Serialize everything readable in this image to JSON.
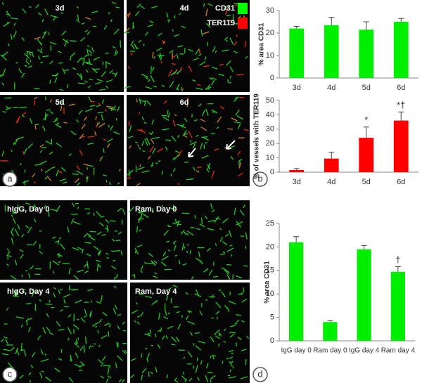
{
  "panels": {
    "a": {
      "label": "a",
      "images": [
        "3d",
        "4d",
        "5d",
        "6d"
      ],
      "legend": [
        {
          "name": "CD31",
          "color": "#00ff00"
        },
        {
          "name": "TER119",
          "color": "#ff0000"
        }
      ]
    },
    "b": {
      "label": "b"
    },
    "c": {
      "label": "c",
      "images": [
        "hIgG, Day 0",
        "Ram, Day 0",
        "hIgG, Day 4",
        "Ram, Day 4"
      ]
    },
    "d": {
      "label": "d"
    }
  },
  "chart_data": [
    {
      "type": "bar",
      "ylabel": "% area CD31",
      "categories": [
        "3d",
        "4d",
        "5d",
        "6d"
      ],
      "values": [
        22,
        23.5,
        21.5,
        25
      ],
      "errors": [
        1,
        3.5,
        3.5,
        1.5
      ],
      "color": "#00ee00",
      "ylim": [
        0,
        30
      ],
      "yticks": [
        0,
        10,
        20,
        30
      ]
    },
    {
      "type": "bar",
      "ylabel": "% of vessels with TER119",
      "categories": [
        "3d",
        "4d",
        "5d",
        "6d"
      ],
      "values": [
        1.5,
        9.5,
        24,
        36
      ],
      "errors": [
        1,
        4.5,
        7.5,
        6
      ],
      "color": "#ff0000",
      "annotations": [
        null,
        null,
        "*",
        "*†"
      ],
      "ylim": [
        0,
        50
      ],
      "yticks": [
        0,
        10,
        20,
        30,
        40,
        50
      ]
    },
    {
      "type": "bar",
      "ylabel": "% area CD31",
      "categories": [
        "IgG day 0",
        "Ram day 0",
        "IgG day 4",
        "Ram day 4"
      ],
      "values": [
        21,
        4,
        19.5,
        14.7
      ],
      "errors": [
        1.2,
        0.3,
        0.8,
        1.1
      ],
      "color": "#00ee00",
      "annotations": [
        null,
        null,
        null,
        "†"
      ],
      "ylim": [
        0,
        25
      ],
      "yticks": [
        0,
        5,
        10,
        15,
        20,
        25
      ]
    }
  ]
}
